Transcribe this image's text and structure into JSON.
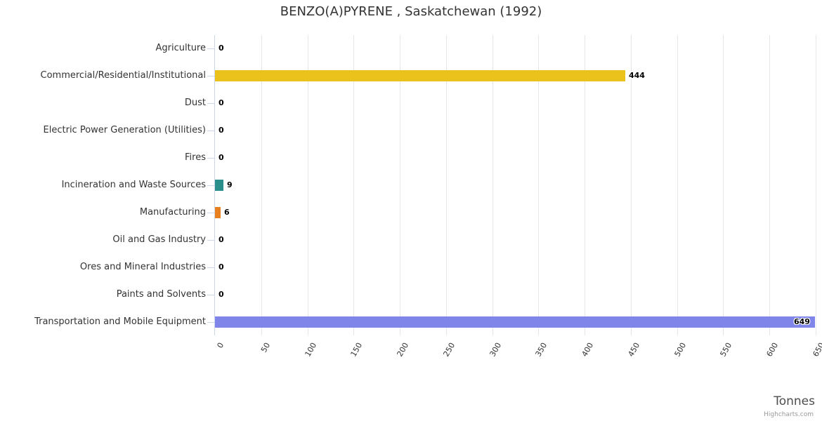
{
  "title": "BENZO(A)PYRENE , Saskatchewan (1992)",
  "axis": {
    "title": "Tonnes"
  },
  "credits": "Highcharts.com",
  "colors": {
    "title_text": "#333333",
    "category_text": "#333333",
    "data_label_text": "#000000",
    "gridline": "#e6e6e6",
    "axis_line": "#ccd6eb"
  },
  "chart_data": {
    "type": "bar",
    "orientation": "horizontal",
    "title": "BENZO(A)PYRENE , Saskatchewan (1992)",
    "xlabel": "Tonnes",
    "ylabel": "",
    "xlim": [
      0,
      650
    ],
    "x_ticks": [
      0,
      50,
      100,
      150,
      200,
      250,
      300,
      350,
      400,
      450,
      500,
      550,
      600,
      650
    ],
    "grid": true,
    "legend": false,
    "categories": [
      "Agriculture",
      "Commercial/Residential/Institutional",
      "Dust",
      "Electric Power Generation (Utilities)",
      "Fires",
      "Incineration and Waste Sources",
      "Manufacturing",
      "Oil and Gas Industry",
      "Ores and Mineral Industries",
      "Paints and Solvents",
      "Transportation and Mobile Equipment"
    ],
    "values": [
      0,
      444,
      0,
      0,
      0,
      9,
      6,
      0,
      0,
      0,
      649
    ],
    "data_labels": [
      "0",
      "444",
      "0",
      "0",
      "0",
      "9",
      "6",
      "0",
      "0",
      "0",
      "649"
    ],
    "bar_colors": [
      null,
      "#ebc11c",
      null,
      null,
      null,
      "#2b8f8c",
      "#e8801f",
      null,
      null,
      null,
      "#8085e9"
    ]
  }
}
